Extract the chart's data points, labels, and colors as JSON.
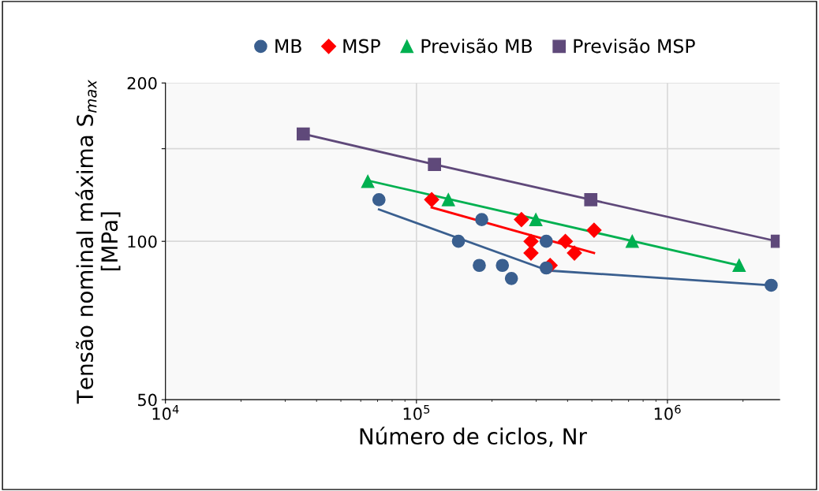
{
  "chart_data": {
    "type": "scatter",
    "xlabel": "Número de ciclos, Nr",
    "ylabel": "Tensão nominal máxima S$_{max}$\n[MPa]",
    "log": "xy",
    "xlim": [
      10000,
      2800000
    ],
    "ylim": [
      50,
      200
    ],
    "xticks": [
      {
        "value": 10000,
        "label": "10$^{4}$"
      },
      {
        "value": 100000,
        "label": "10$^{5}$"
      },
      {
        "value": 1000000,
        "label": "10$^{6}$"
      }
    ],
    "yticks": [
      50,
      100,
      {
        "value": 150,
        "label": null
      },
      200
    ],
    "grid": true,
    "legend": "top",
    "series": [
      {
        "name": "MB",
        "marker": "circle",
        "color": "#3a5f8f",
        "x": [
          70900,
          147000,
          182000,
          178000,
          220000,
          239000,
          329000,
          329000,
          2590000
        ],
        "values": [
          120,
          100,
          110,
          90,
          90,
          85,
          100,
          89,
          82.5
        ]
      },
      {
        "name": "MSP",
        "marker": "diamond",
        "color": "#ff0000",
        "x": [
          115000,
          262000,
          286000,
          286000,
          341000,
          392000,
          426000,
          510000
        ],
        "values": [
          120,
          110,
          100,
          95,
          90,
          100,
          95,
          105
        ]
      },
      {
        "name": "Previsão MB",
        "marker": "triangle",
        "color": "#00b050",
        "x": [
          64000,
          134000,
          299000,
          724000,
          1930000
        ],
        "values": [
          130,
          120,
          110,
          100,
          90
        ]
      },
      {
        "name": "Previsão MSP",
        "marker": "square",
        "color": "#5f497a",
        "x": [
          35400,
          118000,
          495000,
          2740000
        ],
        "values": [
          160,
          140,
          120,
          100
        ]
      },
      {
        "type": "line",
        "marker": "none",
        "color": "#3a5f8f",
        "x": [
          70900,
          334000,
          2590000
        ],
        "values": [
          115,
          88,
          82.5
        ]
      },
      {
        "type": "line",
        "marker": "none",
        "color": "#ff0000",
        "x": [
          115000,
          510000
        ],
        "values": [
          116,
          95
        ]
      },
      {
        "type": "line",
        "marker": "none",
        "color": "#00b050",
        "x": [
          64000,
          1930000
        ],
        "values": [
          130.5,
          90
        ]
      },
      {
        "type": "line",
        "marker": "none",
        "color": "#5f497a",
        "x": [
          35400,
          118000,
          495000,
          2740000
        ],
        "values": [
          160,
          140,
          120,
          100
        ]
      }
    ]
  }
}
